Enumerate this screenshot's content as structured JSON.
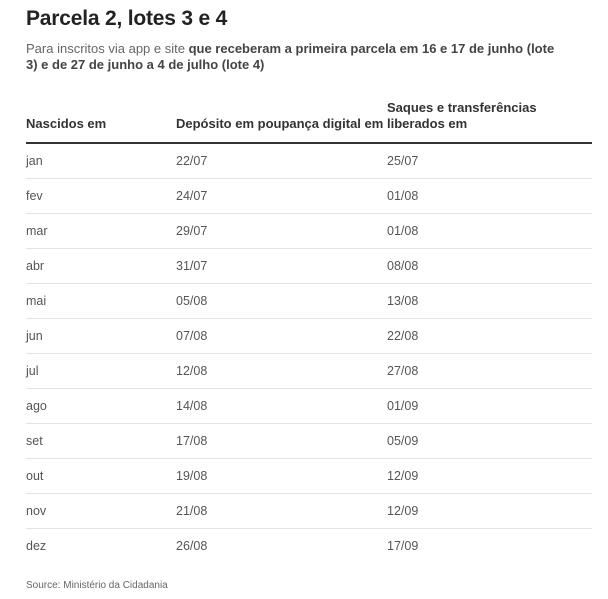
{
  "header": {
    "title": "Parcela 2, lotes 3 e 4",
    "subtitle_plain": "Para inscritos via app e site ",
    "subtitle_bold": "que receberam a primeira parcela em 16 e 17 de junho (lote 3) e de 27 de junho a 4 de julho (lote 4)"
  },
  "table": {
    "columns": [
      "Nascidos em",
      "Depósito em poupança digital em",
      "Saques e transferências liberados em"
    ],
    "rows": [
      [
        "jan",
        "22/07",
        "25/07"
      ],
      [
        "fev",
        "24/07",
        "01/08"
      ],
      [
        "mar",
        "29/07",
        "01/08"
      ],
      [
        "abr",
        "31/07",
        "08/08"
      ],
      [
        "mai",
        "05/08",
        "13/08"
      ],
      [
        "jun",
        "07/08",
        "22/08"
      ],
      [
        "jul",
        "12/08",
        "27/08"
      ],
      [
        "ago",
        "14/08",
        "01/09"
      ],
      [
        "set",
        "17/08",
        "05/09"
      ],
      [
        "out",
        "19/08",
        "12/09"
      ],
      [
        "nov",
        "21/08",
        "12/09"
      ],
      [
        "dez",
        "26/08",
        "17/09"
      ]
    ]
  },
  "footer": {
    "source": "Source: Ministério da Cidadania"
  }
}
